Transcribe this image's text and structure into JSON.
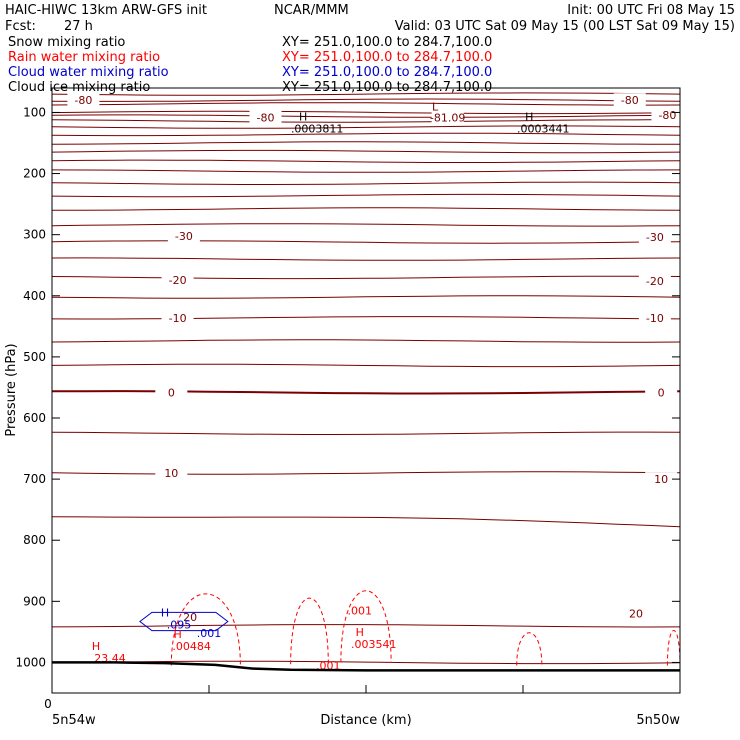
{
  "header": {
    "line1_left": "HAIC-HIWC 13km ARW-GFS init",
    "line1_center": "NCAR/MMM",
    "line1_right": "Init: 00 UTC Fri 08 May 15",
    "line2_left_label": "Fcst:",
    "line2_left_value": "27 h",
    "line2_right": "Valid: 03 UTC Sat 09 May 15 (00 LST Sat 09 May 15)"
  },
  "legend": [
    {
      "name": "Snow mixing ratio",
      "xy": "XY= 251.0,100.0 to 284.7,100.0",
      "color": "#000000"
    },
    {
      "name": "Rain water mixing ratio",
      "xy": "XY= 251.0,100.0 to 284.7,100.0",
      "color": "#ff0000"
    },
    {
      "name": "Cloud water mixing ratio",
      "xy": "XY= 251.0,100.0 to 284.7,100.0",
      "color": "#0000cc"
    },
    {
      "name": "Cloud ice mixing ratio",
      "xy": "XY= 251.0,100.0 to 284.7,100.0",
      "color": "#000000"
    }
  ],
  "colors": {
    "temperature": "#7a0000",
    "rain": "#ff0000",
    "cloud_water": "#0000cc",
    "terrain": "#000000",
    "axis": "#000000"
  },
  "chart_data": {
    "type": "line",
    "xlabel": "Distance (km)",
    "ylabel": "Pressure (hPa)",
    "x_tick_labels": {
      "left": "5n54w",
      "right": "5n50w",
      "zero": "0"
    },
    "x_range": [
      0,
      1
    ],
    "ylim": [
      1050,
      60
    ],
    "y_ticks": [
      100,
      200,
      300,
      400,
      500,
      600,
      700,
      800,
      900,
      1000
    ],
    "temperature_levels_hPa": [
      70,
      80,
      86,
      100,
      106,
      114,
      124,
      136,
      150,
      164,
      180,
      196,
      216,
      236,
      258,
      284,
      312,
      340,
      370,
      402,
      436,
      474,
      514,
      558,
      625,
      690,
      760,
      940,
      1000
    ],
    "bold_isotherm_hPa": 558,
    "temperature_labels": [
      {
        "text": "-80",
        "x": 0.05,
        "p": 80
      },
      {
        "text": "-80",
        "x": 0.34,
        "p": 108
      },
      {
        "text": "-81.09",
        "x": 0.63,
        "p": 108
      },
      {
        "text": "-80",
        "x": 0.92,
        "p": 80
      },
      {
        "text": "-80",
        "x": 0.98,
        "p": 104
      },
      {
        "text": "-30",
        "x": 0.21,
        "p": 302
      },
      {
        "text": "-30",
        "x": 0.96,
        "p": 304
      },
      {
        "text": "-20",
        "x": 0.2,
        "p": 374
      },
      {
        "text": "-20",
        "x": 0.96,
        "p": 376
      },
      {
        "text": "-10",
        "x": 0.2,
        "p": 436
      },
      {
        "text": "-10",
        "x": 0.96,
        "p": 436
      },
      {
        "text": "0",
        "x": 0.19,
        "p": 558
      },
      {
        "text": "0",
        "x": 0.97,
        "p": 558
      },
      {
        "text": "10",
        "x": 0.19,
        "p": 690
      },
      {
        "text": "10",
        "x": 0.97,
        "p": 700
      },
      {
        "text": "20",
        "x": 0.22,
        "p": 926
      },
      {
        "text": "20",
        "x": 0.93,
        "p": 920
      }
    ],
    "extrema": [
      {
        "marker": "L",
        "value": "",
        "x": 0.61,
        "p": 97,
        "color": "temperature"
      },
      {
        "marker": "H",
        "value": ".0003811",
        "x": 0.4,
        "p": 113,
        "color": "terrain"
      },
      {
        "marker": "H",
        "value": ".0003441",
        "x": 0.76,
        "p": 113,
        "color": "terrain"
      },
      {
        "marker": "H",
        "value": "23.44",
        "x": 0.07,
        "p": 980,
        "color": "rain"
      },
      {
        "marker": "H",
        "value": ".00484",
        "x": 0.2,
        "p": 960,
        "color": "rain"
      },
      {
        "marker": "H",
        "value": ".003541",
        "x": 0.49,
        "p": 957,
        "color": "rain"
      },
      {
        "marker": "H",
        "value": ".095",
        "x": 0.18,
        "p": 925,
        "color": "cloud_water"
      }
    ],
    "contour_labels": [
      {
        "text": ".001",
        "x": 0.49,
        "p": 915,
        "color": "rain"
      },
      {
        "text": ".001",
        "x": 0.44,
        "p": 1005,
        "color": "rain"
      },
      {
        "text": ".001",
        "x": 0.25,
        "p": 952,
        "color": "cloud_water"
      }
    ],
    "rain_contours": [
      {
        "x0": 0.19,
        "x1": 0.3,
        "ptop": 865,
        "pbot": 1005
      },
      {
        "x0": 0.38,
        "x1": 0.44,
        "ptop": 875,
        "pbot": 1003
      },
      {
        "x0": 0.46,
        "x1": 0.54,
        "ptop": 860,
        "pbot": 1000
      },
      {
        "x0": 0.74,
        "x1": 0.78,
        "ptop": 950,
        "pbot": 1005
      },
      {
        "x0": 0.98,
        "x1": 1.0,
        "ptop": 945,
        "pbot": 1005
      }
    ],
    "cloud_water_contour": {
      "x0": 0.14,
      "x1": 0.28,
      "ptop": 918,
      "pbot": 948
    },
    "terrain_x": [
      0,
      0.1,
      0.18,
      0.26,
      0.32,
      0.38,
      0.5,
      0.7,
      1.0
    ],
    "terrain_p": [
      1000,
      1000,
      1001,
      1004,
      1010,
      1012,
      1013,
      1013,
      1013
    ],
    "grid": false
  }
}
